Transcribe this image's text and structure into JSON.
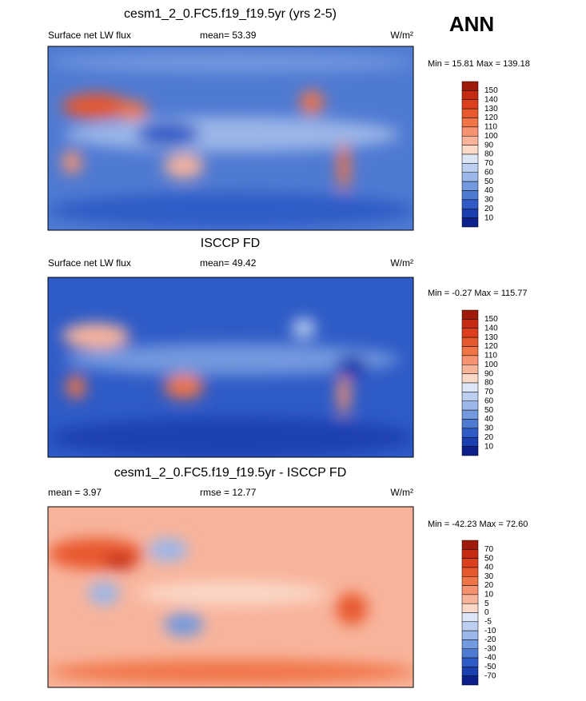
{
  "season": "ANN",
  "panels": [
    {
      "title": "cesm1_2_0.FC5.f19_f19.5yr (yrs 2-5)",
      "left": "Surface net LW flux",
      "center": "mean=  53.39",
      "units": "W/m²",
      "minmax": "Min =  15.81 Max = 139.18",
      "colorbar": {
        "levels": [
          150,
          140,
          130,
          120,
          110,
          100,
          90,
          80,
          70,
          60,
          50,
          40,
          30,
          20,
          10
        ],
        "colors": [
          "#9e1a0a",
          "#c52a12",
          "#dc3f1e",
          "#e8582e",
          "#f07546",
          "#f59270",
          "#f8b49b",
          "#fbd8c8",
          "#dce6f6",
          "#bccff0",
          "#9bb6e8",
          "#7399de",
          "#4f7ad2",
          "#2f5bc6",
          "#1c3fb0",
          "#0c1f8a"
        ]
      }
    },
    {
      "title": "ISCCP FD",
      "left": "Surface net LW flux",
      "center": "mean=  49.42",
      "units": "W/m²",
      "minmax": "Min =  -0.27 Max = 115.77",
      "colorbar": {
        "levels": [
          150,
          140,
          130,
          120,
          110,
          100,
          90,
          80,
          70,
          60,
          50,
          40,
          30,
          20,
          10
        ],
        "colors": [
          "#9e1a0a",
          "#c52a12",
          "#dc3f1e",
          "#e8582e",
          "#f07546",
          "#f59270",
          "#f8b49b",
          "#fbd8c8",
          "#dce6f6",
          "#bccff0",
          "#9bb6e8",
          "#7399de",
          "#4f7ad2",
          "#2f5bc6",
          "#1c3fb0",
          "#0c1f8a"
        ]
      }
    },
    {
      "title": "cesm1_2_0.FC5.f19_f19.5yr - ISCCP FD",
      "left": "mean =  3.97",
      "center": "rmse =  12.77",
      "units": "W/m²",
      "minmax": "Min = -42.23 Max =  72.60",
      "colorbar": {
        "levels": [
          70,
          50,
          40,
          30,
          20,
          10,
          5,
          0,
          -5,
          -10,
          -20,
          -30,
          -40,
          -50,
          -70
        ],
        "colors": [
          "#9e1a0a",
          "#c52a12",
          "#dc3f1e",
          "#e8582e",
          "#f07546",
          "#f59270",
          "#f8b49b",
          "#fbd8c8",
          "#dce6f6",
          "#bccff0",
          "#9bb6e8",
          "#7399de",
          "#4f7ad2",
          "#2f5bc6",
          "#1c3fb0",
          "#0c1f8a"
        ]
      }
    }
  ]
}
